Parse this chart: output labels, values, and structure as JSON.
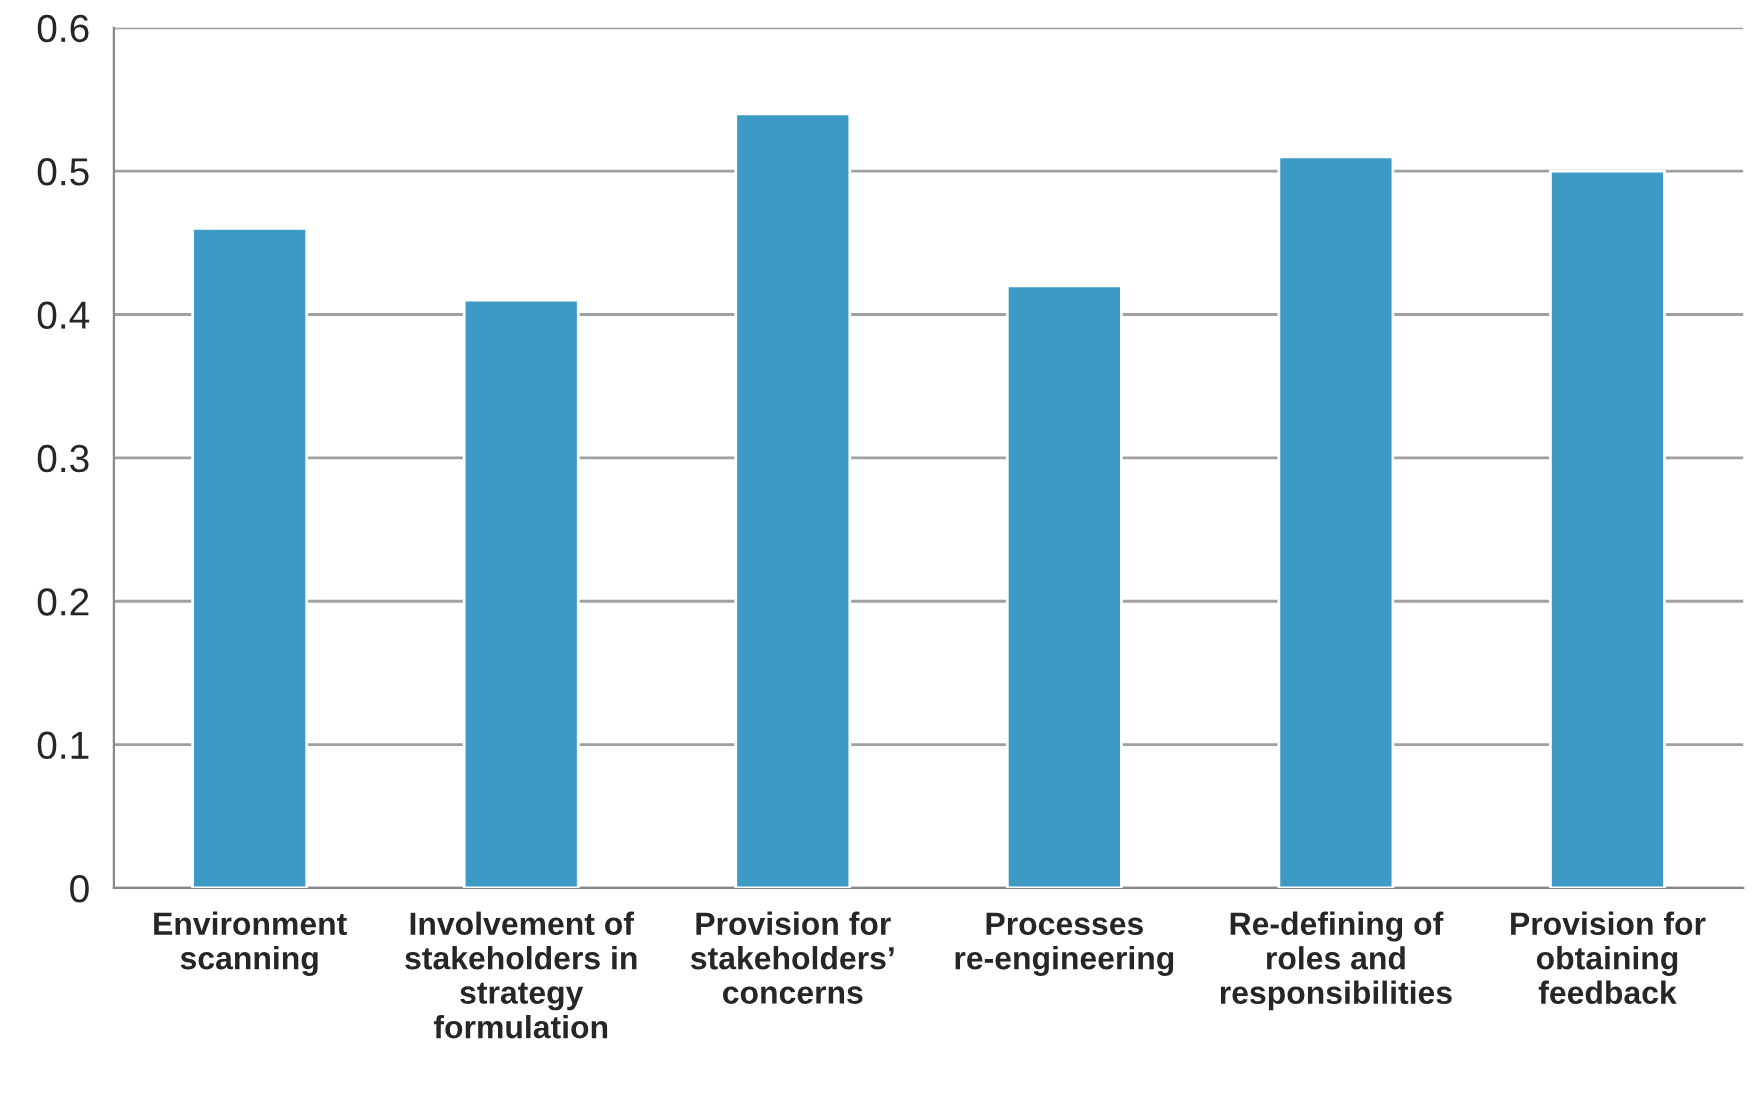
{
  "chart_data": {
    "type": "bar",
    "categories": [
      "Environment scanning",
      "Involvement of stakeholders in strategy formulation",
      "Provision for stakeholders’ concerns",
      "Processes re-engineering",
      "Re-defining of roles and responsibilities",
      "Provision for obtaining feedback"
    ],
    "values": [
      0.46,
      0.41,
      0.54,
      0.42,
      0.51,
      0.5
    ],
    "color": "#3d9ac4",
    "ylim": [
      0,
      0.6
    ],
    "yticks": [
      0,
      {
        "value": 0.1,
        "label": "0.1"
      },
      {
        "value": 0.2,
        "label": "0.2"
      },
      {
        "value": 0.3,
        "label": "0.3"
      },
      {
        "value": 0.4,
        "label": "0.4"
      },
      {
        "value": 0.5,
        "label": "0.5"
      },
      {
        "value": 0.6,
        "label": "0.6"
      }
    ],
    "grid": "y",
    "legend": false
  }
}
